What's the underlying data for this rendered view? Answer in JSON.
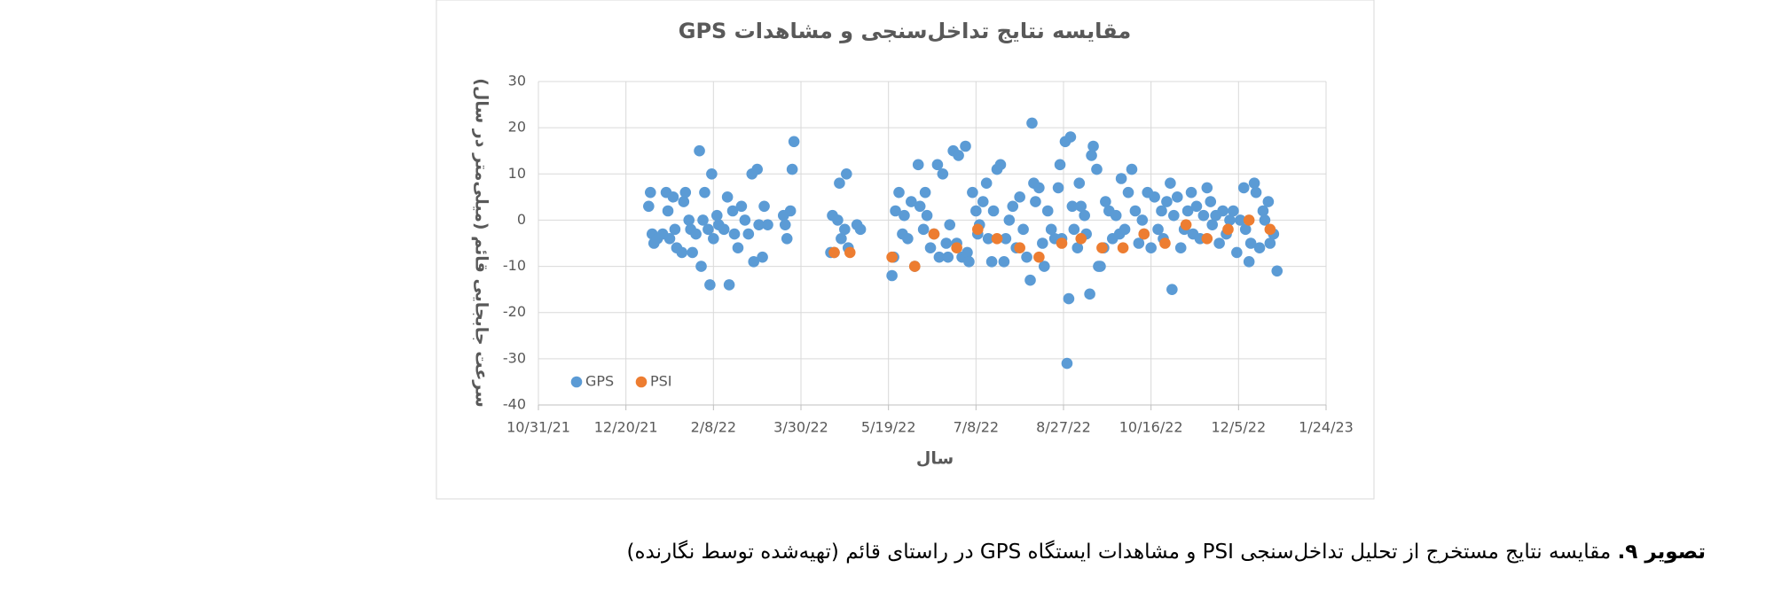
{
  "chart_data": {
    "type": "scatter",
    "title": "مقایسه نتایج تداخل‌سنجی و مشاهدات GPS",
    "x_label": "سال",
    "y_label": "سرعت جابجایی قائم (میلی‌متر در سال)",
    "xlim": [
      "10/31/21",
      "1/24/23"
    ],
    "xticks": [
      "10/31/21",
      "12/20/21",
      "2/8/22",
      "3/30/22",
      "5/19/22",
      "7/8/22",
      "8/27/22",
      "10/16/22",
      "12/5/22",
      "1/24/23"
    ],
    "ylim": [
      -40,
      30
    ],
    "yticks": [
      -40,
      -30,
      -20,
      -10,
      0,
      10,
      20,
      30
    ],
    "grid": true,
    "legend": "lower left",
    "series": [
      {
        "name": "GPS",
        "color": "#5b9bd5",
        "x": [
          "1/2/22",
          "1/3/22",
          "1/4/22",
          "1/5/22",
          "1/7/22",
          "1/10/22",
          "1/12/22",
          "1/13/22",
          "1/14/22",
          "1/16/22",
          "1/17/22",
          "1/18/22",
          "1/21/22",
          "1/22/22",
          "1/23/22",
          "1/25/22",
          "1/26/22",
          "1/27/22",
          "1/29/22",
          "1/31/22",
          "2/1/22",
          "2/2/22",
          "2/3/22",
          "2/5/22",
          "2/6/22",
          "2/7/22",
          "2/8/22",
          "2/10/22",
          "2/11/22",
          "2/14/22",
          "2/16/22",
          "2/17/22",
          "2/19/22",
          "2/20/22",
          "2/22/22",
          "2/24/22",
          "2/26/22",
          "2/28/22",
          "3/2/22",
          "3/3/22",
          "3/5/22",
          "3/6/22",
          "3/8/22",
          "3/9/22",
          "3/11/22",
          "3/20/22",
          "3/21/22",
          "3/22/22",
          "3/24/22",
          "3/25/22",
          "3/26/22",
          "4/16/22",
          "4/17/22",
          "4/18/22",
          "4/20/22",
          "4/21/22",
          "4/22/22",
          "4/24/22",
          "4/25/22",
          "4/26/22",
          "5/1/22",
          "5/3/22",
          "5/21/22",
          "5/22/22",
          "5/23/22",
          "5/25/22",
          "5/27/22",
          "5/28/22",
          "5/30/22",
          "6/1/22",
          "6/3/22",
          "6/5/22",
          "6/6/22",
          "6/8/22",
          "6/9/22",
          "6/10/22",
          "6/12/22",
          "6/14/22",
          "6/16/22",
          "6/17/22",
          "6/19/22",
          "6/21/22",
          "6/22/22",
          "6/23/22",
          "6/25/22",
          "6/27/22",
          "6/28/22",
          "6/30/22",
          "7/2/22",
          "7/3/22",
          "7/4/22",
          "7/6/22",
          "7/8/22",
          "7/9/22",
          "7/10/22",
          "7/12/22",
          "7/14/22",
          "7/15/22",
          "7/17/22",
          "7/18/22",
          "7/20/22",
          "7/22/22",
          "7/24/22",
          "7/25/22",
          "7/27/22",
          "7/29/22",
          "7/31/22",
          "8/2/22",
          "8/4/22",
          "8/6/22",
          "8/8/22",
          "8/9/22",
          "8/10/22",
          "8/11/22",
          "8/13/22",
          "8/15/22",
          "8/16/22",
          "8/18/22",
          "8/20/22",
          "8/22/22",
          "8/24/22",
          "8/25/22",
          "8/26/22",
          "8/28/22",
          "8/29/22",
          "8/30/22",
          "8/31/22",
          "9/1/22",
          "9/2/22",
          "9/4/22",
          "9/5/22",
          "9/6/22",
          "9/8/22",
          "9/9/22",
          "9/11/22",
          "9/12/22",
          "9/13/22",
          "9/15/22",
          "9/16/22",
          "9/17/22",
          "9/19/22",
          "9/20/22",
          "9/22/22",
          "9/24/22",
          "9/26/22",
          "9/28/22",
          "9/29/22",
          "10/1/22",
          "10/3/22",
          "10/5/22",
          "10/7/22",
          "10/9/22",
          "10/11/22",
          "10/12/22",
          "10/14/22",
          "10/16/22",
          "10/18/22",
          "10/20/22",
          "10/22/22",
          "10/23/22",
          "10/25/22",
          "10/27/22",
          "10/28/22",
          "10/29/22",
          "10/31/22",
          "11/2/22",
          "11/4/22",
          "11/6/22",
          "11/8/22",
          "11/9/22",
          "11/11/22",
          "11/13/22",
          "11/15/22",
          "11/17/22",
          "11/19/22",
          "11/20/22",
          "11/22/22",
          "11/24/22",
          "11/26/22",
          "11/28/22",
          "11/30/22",
          "12/2/22",
          "12/4/22",
          "12/6/22",
          "12/8/22",
          "12/9/22",
          "12/11/22",
          "12/12/22",
          "12/14/22",
          "12/15/22",
          "12/17/22",
          "12/19/22",
          "12/20/22",
          "12/22/22",
          "12/23/22",
          "12/25/22",
          "12/27/22"
        ],
        "values": [
          3,
          6,
          -3,
          -5,
          -4,
          -3,
          6,
          2,
          -4,
          5,
          -2,
          -6,
          -7,
          4,
          6,
          0,
          -2,
          -7,
          -3,
          15,
          -10,
          0,
          6,
          -2,
          -14,
          10,
          -4,
          1,
          -1,
          -2,
          5,
          -14,
          2,
          -3,
          -6,
          3,
          0,
          -3,
          10,
          -9,
          11,
          -1,
          -8,
          3,
          -1,
          1,
          -1,
          -4,
          2,
          11,
          17,
          -7,
          1,
          -7,
          0,
          8,
          -4,
          -2,
          10,
          -6,
          -1,
          -2,
          -12,
          -8,
          2,
          6,
          -3,
          1,
          -4,
          4,
          -10,
          12,
          3,
          -2,
          6,
          1,
          -6,
          -3,
          12,
          -8,
          10,
          -5,
          -8,
          -1,
          15,
          -5,
          14,
          -8,
          16,
          -7,
          -9,
          6,
          2,
          -3,
          -1,
          4,
          8,
          -4,
          -9,
          2,
          11,
          12,
          -9,
          -4,
          0,
          3,
          -6,
          5,
          -2,
          -8,
          -13,
          21,
          8,
          4,
          7,
          -5,
          -10,
          2,
          -2,
          -4,
          7,
          12,
          -4,
          17,
          -31,
          -17,
          18,
          3,
          -2,
          -6,
          8,
          3,
          1,
          -3,
          -16,
          14,
          16,
          11,
          -10,
          -10,
          -6,
          4,
          2,
          -4,
          1,
          -3,
          9,
          -2,
          6,
          11,
          2,
          -5,
          0,
          -3,
          6,
          -6,
          5,
          -2,
          2,
          -4,
          4,
          8,
          -15,
          1,
          5,
          -6,
          -2,
          2,
          6,
          -3,
          3,
          -4,
          1,
          7,
          4,
          -1,
          1,
          -5,
          2,
          -3,
          0,
          2,
          -7,
          0,
          7,
          -2,
          -9,
          -5,
          8,
          6,
          -6,
          2,
          0,
          4,
          -5,
          -3,
          -11
        ]
      },
      {
        "name": "PSI",
        "color": "#ed7d31",
        "x": [
          "4/18/22",
          "4/27/22",
          "5/21/22",
          "6/3/22",
          "6/14/22",
          "6/27/22",
          "7/9/22",
          "7/20/22",
          "8/2/22",
          "8/13/22",
          "8/26/22",
          "9/6/22",
          "9/18/22",
          "9/30/22",
          "10/12/22",
          "10/24/22",
          "11/5/22",
          "11/17/22",
          "11/29/22",
          "12/11/22",
          "12/23/22"
        ],
        "values": [
          -7,
          -7,
          -8,
          -10,
          -3,
          -6,
          -2,
          -4,
          -6,
          -8,
          -5,
          -4,
          -6,
          -6,
          -3,
          -5,
          -1,
          -4,
          -2,
          0,
          -2
        ]
      }
    ]
  },
  "caption": {
    "label": "تصویر ۹.",
    "text": "مقایسه نتایج مستخرج از تحلیل تداخل‌سنجی PSI و مشاهدات ایستگاه GPS در راستای قائم (تهیه‌شده توسط نگارنده)"
  }
}
